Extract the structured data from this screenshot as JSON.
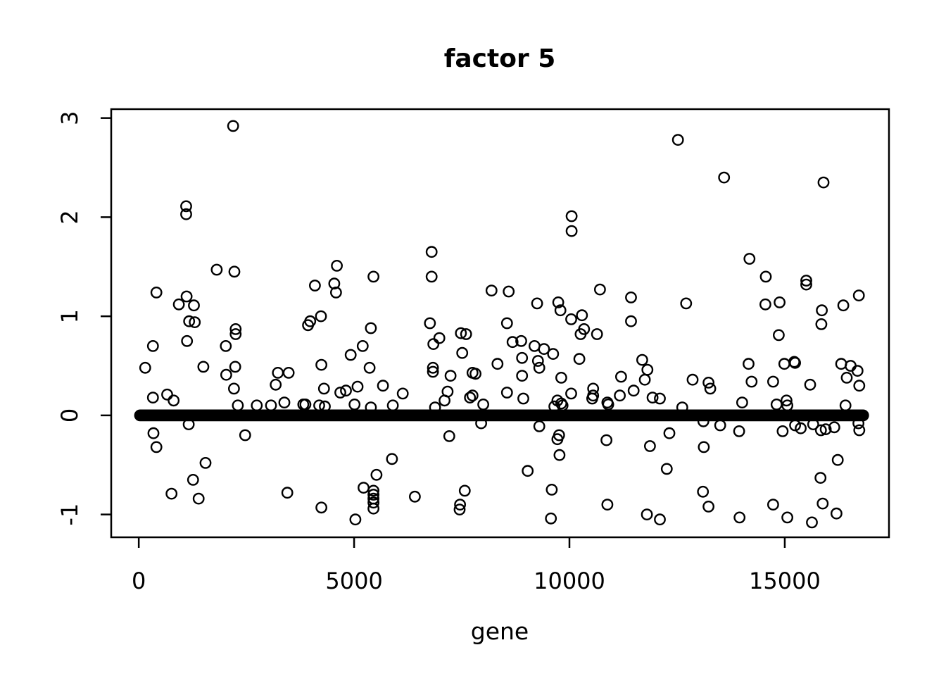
{
  "chart_data": {
    "type": "scatter",
    "title": "factor 5",
    "xlabel": "gene",
    "ylabel": "",
    "marker": "open-circle",
    "grid": false,
    "colors": {
      "points": "#000000",
      "axis": "#000000",
      "background": "#ffffff"
    },
    "x_ticks": [
      0,
      5000,
      10000,
      15000
    ],
    "y_ticks": [
      -1,
      0,
      1,
      2,
      3
    ],
    "xlim": [
      -640,
      17420
    ],
    "ylim": [
      -1.23,
      3.09
    ],
    "zero_band": {
      "value": 0,
      "x_start": 30,
      "x_end": 16820,
      "description": "dense overplotted points at y=0 across all genes forming a solid black band"
    },
    "points": [
      [
        2190,
        2.92
      ],
      [
        1100,
        2.11
      ],
      [
        1100,
        2.03
      ],
      [
        1810,
        1.47
      ],
      [
        2220,
        1.45
      ],
      [
        410,
        1.24
      ],
      [
        1110,
        1.2
      ],
      [
        930,
        1.12
      ],
      [
        1280,
        1.11
      ],
      [
        1170,
        0.95
      ],
      [
        1300,
        0.94
      ],
      [
        6800,
        1.65
      ],
      [
        4600,
        1.51
      ],
      [
        5450,
        1.4
      ],
      [
        6800,
        1.4
      ],
      [
        4090,
        1.31
      ],
      [
        4540,
        1.33
      ],
      [
        4580,
        1.24
      ],
      [
        8190,
        1.26
      ],
      [
        4230,
        1.0
      ],
      [
        3980,
        0.95
      ],
      [
        6760,
        0.93
      ],
      [
        12520,
        2.78
      ],
      [
        10050,
        2.01
      ],
      [
        10050,
        1.86
      ],
      [
        8590,
        1.25
      ],
      [
        9250,
        1.13
      ],
      [
        9740,
        1.14
      ],
      [
        9790,
        1.06
      ],
      [
        10710,
        1.27
      ],
      [
        11430,
        1.19
      ],
      [
        10040,
        0.97
      ],
      [
        10290,
        1.01
      ],
      [
        11430,
        0.95
      ],
      [
        12710,
        1.13
      ],
      [
        8550,
        0.93
      ],
      [
        13590,
        2.4
      ],
      [
        15900,
        2.35
      ],
      [
        14180,
        1.58
      ],
      [
        14560,
        1.4
      ],
      [
        15500,
        1.36
      ],
      [
        15500,
        1.32
      ],
      [
        14550,
        1.12
      ],
      [
        14880,
        1.14
      ],
      [
        15860,
        1.06
      ],
      [
        16360,
        1.11
      ],
      [
        16720,
        1.21
      ],
      [
        15850,
        0.92
      ],
      [
        2250,
        0.87
      ],
      [
        2250,
        0.82
      ],
      [
        330,
        0.7
      ],
      [
        1120,
        0.75
      ],
      [
        2020,
        0.7
      ],
      [
        150,
        0.48
      ],
      [
        1500,
        0.49
      ],
      [
        2030,
        0.41
      ],
      [
        2240,
        0.49
      ],
      [
        2210,
        0.27
      ],
      [
        330,
        0.18
      ],
      [
        660,
        0.21
      ],
      [
        810,
        0.15
      ],
      [
        3230,
        0.43
      ],
      [
        3480,
        0.43
      ],
      [
        3180,
        0.31
      ],
      [
        2300,
        0.1
      ],
      [
        2740,
        0.1
      ],
      [
        3070,
        0.1
      ],
      [
        3380,
        0.13
      ],
      [
        3820,
        0.11
      ],
      [
        1160,
        -0.09
      ],
      [
        340,
        -0.18
      ],
      [
        410,
        -0.32
      ],
      [
        2470,
        -0.2
      ],
      [
        1550,
        -0.48
      ],
      [
        1260,
        -0.65
      ],
      [
        760,
        -0.79
      ],
      [
        1390,
        -0.84
      ],
      [
        3450,
        -0.78
      ],
      [
        3930,
        0.91
      ],
      [
        5390,
        0.88
      ],
      [
        5200,
        0.7
      ],
      [
        6980,
        0.78
      ],
      [
        6840,
        0.72
      ],
      [
        7480,
        0.83
      ],
      [
        7600,
        0.82
      ],
      [
        4920,
        0.61
      ],
      [
        7510,
        0.63
      ],
      [
        4240,
        0.51
      ],
      [
        5360,
        0.48
      ],
      [
        6830,
        0.48
      ],
      [
        6830,
        0.44
      ],
      [
        7240,
        0.4
      ],
      [
        7750,
        0.43
      ],
      [
        7820,
        0.42
      ],
      [
        8330,
        0.52
      ],
      [
        4300,
        0.27
      ],
      [
        4680,
        0.23
      ],
      [
        4810,
        0.25
      ],
      [
        5080,
        0.29
      ],
      [
        5670,
        0.3
      ],
      [
        6130,
        0.22
      ],
      [
        7170,
        0.24
      ],
      [
        7100,
        0.15
      ],
      [
        7690,
        0.18
      ],
      [
        7750,
        0.2
      ],
      [
        8000,
        0.11
      ],
      [
        3870,
        0.11
      ],
      [
        4190,
        0.1
      ],
      [
        4320,
        0.09
      ],
      [
        5010,
        0.11
      ],
      [
        5390,
        0.08
      ],
      [
        5900,
        0.1
      ],
      [
        6880,
        0.08
      ],
      [
        7950,
        -0.08
      ],
      [
        7210,
        -0.21
      ],
      [
        5880,
        -0.44
      ],
      [
        5520,
        -0.6
      ],
      [
        5220,
        -0.73
      ],
      [
        5450,
        -0.76
      ],
      [
        5450,
        -0.8
      ],
      [
        5450,
        -0.84
      ],
      [
        5450,
        -0.88
      ],
      [
        5450,
        -0.94
      ],
      [
        6410,
        -0.82
      ],
      [
        4240,
        -0.93
      ],
      [
        5030,
        -1.05
      ],
      [
        7570,
        -0.76
      ],
      [
        7460,
        -0.9
      ],
      [
        7450,
        -0.95
      ],
      [
        8680,
        0.74
      ],
      [
        8880,
        0.75
      ],
      [
        9190,
        0.7
      ],
      [
        9410,
        0.67
      ],
      [
        9620,
        0.62
      ],
      [
        8900,
        0.58
      ],
      [
        9270,
        0.55
      ],
      [
        9300,
        0.48
      ],
      [
        10230,
        0.57
      ],
      [
        10260,
        0.82
      ],
      [
        10340,
        0.87
      ],
      [
        10640,
        0.82
      ],
      [
        8900,
        0.4
      ],
      [
        9810,
        0.38
      ],
      [
        11690,
        0.56
      ],
      [
        11810,
        0.46
      ],
      [
        11750,
        0.36
      ],
      [
        11200,
        0.39
      ],
      [
        12860,
        0.36
      ],
      [
        8550,
        0.23
      ],
      [
        8930,
        0.17
      ],
      [
        9720,
        0.15
      ],
      [
        9810,
        0.12
      ],
      [
        9650,
        0.09
      ],
      [
        9840,
        0.1
      ],
      [
        10040,
        0.22
      ],
      [
        10550,
        0.27
      ],
      [
        10550,
        0.2
      ],
      [
        10530,
        0.17
      ],
      [
        10880,
        0.13
      ],
      [
        10900,
        0.11
      ],
      [
        11170,
        0.2
      ],
      [
        11490,
        0.25
      ],
      [
        11930,
        0.18
      ],
      [
        12100,
        0.17
      ],
      [
        12620,
        0.08
      ],
      [
        9300,
        -0.11
      ],
      [
        9760,
        -0.2
      ],
      [
        9720,
        -0.24
      ],
      [
        9770,
        -0.4
      ],
      [
        10860,
        -0.25
      ],
      [
        12320,
        -0.18
      ],
      [
        11870,
        -0.31
      ],
      [
        12260,
        -0.54
      ],
      [
        9030,
        -0.56
      ],
      [
        9590,
        -0.75
      ],
      [
        10880,
        -0.9
      ],
      [
        9570,
        -1.04
      ],
      [
        11800,
        -1.0
      ],
      [
        12100,
        -1.05
      ],
      [
        14860,
        0.81
      ],
      [
        14160,
        0.52
      ],
      [
        14990,
        0.52
      ],
      [
        15220,
        0.54
      ],
      [
        15240,
        0.53
      ],
      [
        16310,
        0.52
      ],
      [
        16530,
        0.5
      ],
      [
        16440,
        0.38
      ],
      [
        16690,
        0.45
      ],
      [
        16730,
        0.3
      ],
      [
        13230,
        0.33
      ],
      [
        13270,
        0.27
      ],
      [
        14230,
        0.34
      ],
      [
        14730,
        0.34
      ],
      [
        15590,
        0.31
      ],
      [
        14010,
        0.13
      ],
      [
        14810,
        0.11
      ],
      [
        15040,
        0.15
      ],
      [
        15060,
        0.1
      ],
      [
        16410,
        0.1
      ],
      [
        13110,
        -0.06
      ],
      [
        13500,
        -0.1
      ],
      [
        13940,
        -0.16
      ],
      [
        15240,
        -0.1
      ],
      [
        14950,
        -0.16
      ],
      [
        15370,
        -0.13
      ],
      [
        15660,
        -0.09
      ],
      [
        15840,
        -0.15
      ],
      [
        15950,
        -0.14
      ],
      [
        16150,
        -0.12
      ],
      [
        16710,
        -0.08
      ],
      [
        16730,
        -0.15
      ],
      [
        13120,
        -0.32
      ],
      [
        16230,
        -0.45
      ],
      [
        15830,
        -0.63
      ],
      [
        13100,
        -0.77
      ],
      [
        13230,
        -0.92
      ],
      [
        14730,
        -0.9
      ],
      [
        15880,
        -0.89
      ],
      [
        16200,
        -0.99
      ],
      [
        13950,
        -1.03
      ],
      [
        15060,
        -1.03
      ],
      [
        15630,
        -1.08
      ]
    ]
  }
}
